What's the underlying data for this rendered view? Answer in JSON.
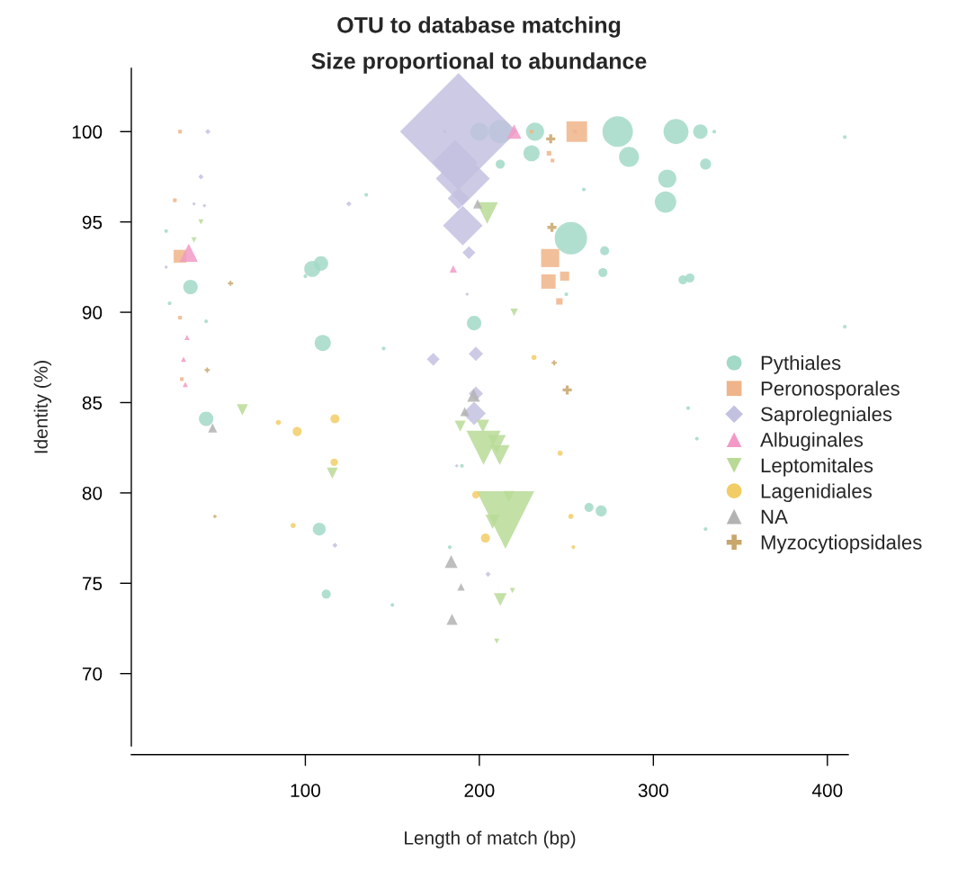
{
  "chart_data": {
    "type": "bubble",
    "title": "OTU to database matching",
    "subtitle": "Size proportional to abundance",
    "xlabel": "Length of match (bp)",
    "ylabel": "Identity (%)",
    "xlim": [
      0,
      412
    ],
    "ylim": [
      66,
      103.5
    ],
    "xticks": [
      100,
      200,
      300,
      400
    ],
    "yticks": [
      70,
      75,
      80,
      85,
      90,
      95,
      100
    ],
    "grid": false,
    "legend": "right",
    "series": [
      {
        "name": "Pythiales",
        "color": "#a3d9c7",
        "marker": "circle",
        "x": [
          252.6,
          279.5,
          313,
          327,
          286,
          308,
          307,
          232,
          212,
          200,
          230,
          104,
          109,
          110,
          34,
          43,
          108,
          112,
          197,
          212,
          270,
          263,
          272,
          271,
          317,
          321,
          330,
          410,
          410,
          320,
          325,
          335,
          135,
          100,
          20,
          22,
          43,
          145,
          183,
          150,
          250,
          260,
          330,
          190
        ],
        "values": [
          94.1,
          100,
          100,
          100,
          98.6,
          97.4,
          96.1,
          100,
          100,
          100,
          98.8,
          92.4,
          92.7,
          88.3,
          91.4,
          84.1,
          78.0,
          74.4,
          89.4,
          98.2,
          79.0,
          79.2,
          93.4,
          92.2,
          91.8,
          91.9,
          98.2,
          99.7,
          89.2,
          84.7,
          83.0,
          100,
          96.5,
          92.0,
          94.5,
          90.5,
          89.5,
          88.0,
          77.0,
          73.8,
          91.0,
          96.8,
          78.0,
          81.5
        ],
        "sizes": [
          0.121,
          0.107,
          0.072,
          0.024,
          0.046,
          0.038,
          0.053,
          0.038,
          0.063,
          0.038,
          0.03,
          0.03,
          0.024,
          0.03,
          0.024,
          0.024,
          0.019,
          0.0094,
          0.024,
          0.0094,
          0.014,
          0.0094,
          0.0094,
          0.0094,
          0.0094,
          0.0094,
          0.014,
          0.0016,
          0.0016,
          0.0016,
          0.0016,
          0.0016,
          0.0016,
          0.0016,
          0.0016,
          0.0016,
          0.0016,
          0.0016,
          0.0016,
          0.0016,
          0.0016,
          0.0016,
          0.0016,
          0.0016
        ]
      },
      {
        "name": "Peronosporales",
        "color": "#f0b48a",
        "marker": "square",
        "x": [
          256,
          240.7,
          239.7,
          249,
          246,
          240,
          242,
          28,
          28,
          25,
          28,
          29,
          230,
          255
        ],
        "values": [
          100,
          93.0,
          91.7,
          92.0,
          90.6,
          98.8,
          98.4,
          93.1,
          100,
          96.2,
          89.7,
          86.3,
          100,
          100
        ],
        "sizes": [
          0.062,
          0.048,
          0.03,
          0.012,
          0.006,
          0.003,
          0.002,
          0.024,
          0.002,
          0.002,
          0.002,
          0.002,
          0.002,
          0.002
        ]
      },
      {
        "name": "Saprolegniales",
        "color": "#c3c1e0",
        "marker": "diamond",
        "x": [
          188,
          186,
          190.5,
          190.5,
          188,
          194,
          198,
          173.5,
          198,
          197,
          44,
          40,
          36,
          125,
          117,
          42,
          20,
          205,
          180,
          193,
          187
        ],
        "values": [
          100,
          98.3,
          97.4,
          94.8,
          96.3,
          93.3,
          87.7,
          87.4,
          85.5,
          84.4,
          100,
          97.5,
          96,
          96,
          77.1,
          95.9,
          92.5,
          75.5,
          100,
          91,
          81.5
        ],
        "sizes": [
          1,
          0.148,
          0.213,
          0.115,
          0.034,
          0.012,
          0.015,
          0.012,
          0.015,
          0.04,
          0.002,
          0.002,
          0.001,
          0.002,
          0.002,
          0.001,
          0.001,
          0.002,
          0.001,
          0.001,
          0.001
        ]
      },
      {
        "name": "Albuginales",
        "color": "#f29ac5",
        "marker": "triangle",
        "x": [
          33,
          220,
          185,
          32,
          30,
          31
        ],
        "values": [
          93.3,
          100,
          92.4,
          88.6,
          87.4,
          86
        ],
        "sizes": [
          0.024,
          0.015,
          0.004,
          0.002,
          0.002,
          0.002
        ]
      },
      {
        "name": "Leptomitales",
        "color": "#b9da96",
        "marker": "triangle_down",
        "x": [
          215,
          202.4,
          211.7,
          210,
          207.6,
          204.5,
          202,
          189,
          212,
          217,
          63.8,
          115.5,
          220,
          210,
          219,
          36,
          40
        ],
        "values": [
          78.5,
          82.5,
          82.1,
          82.7,
          78.4,
          95.5,
          83.7,
          83.7,
          74.1,
          79.8,
          84.6,
          81.1,
          90,
          71.8,
          74.6,
          94,
          95
        ],
        "sizes": [
          0.242,
          0.085,
          0.029,
          0.024,
          0.015,
          0.034,
          0.012,
          0.009,
          0.012,
          0.009,
          0.009,
          0.009,
          0.004,
          0.002,
          0.002,
          0.002,
          0.002
        ]
      },
      {
        "name": "Lagenidiales",
        "color": "#f2cd66",
        "marker": "circle",
        "x": [
          95.3,
          117,
          116.6,
          93,
          203.5,
          198,
          252.6,
          246.4,
          231.4,
          84.5,
          254
        ],
        "values": [
          83.4,
          84.1,
          81.7,
          78.2,
          77.5,
          79.9,
          78.7,
          82.2,
          87.5,
          83.9,
          77
        ],
        "sizes": [
          0.0094,
          0.0094,
          0.0063,
          0.0031,
          0.0094,
          0.0063,
          0.0031,
          0.0031,
          0.0031,
          0.0031,
          0.0016
        ]
      },
      {
        "name": "NA",
        "color": "#b3b3b3",
        "marker": "triangle",
        "x": [
          183.8,
          189.5,
          184.3,
          196.7,
          191.6,
          46.7,
          199
        ],
        "values": [
          76.2,
          74.8,
          73.0,
          85.4,
          84.5,
          83.6,
          96.0
        ],
        "sizes": [
          0.012,
          0.004,
          0.009,
          0.012,
          0.006,
          0.006,
          0.006
        ]
      },
      {
        "name": "Myzocytiopsidales",
        "color": "#c9a66b",
        "marker": "cross",
        "x": [
          241.7,
          250.5,
          241,
          243,
          57,
          43.6,
          48
        ],
        "values": [
          94.7,
          85.7,
          99.6,
          87.2,
          91.6,
          86.8,
          78.7
        ],
        "sizes": [
          0.006,
          0.006,
          0.006,
          0.002,
          0.002,
          0.002,
          0.001
        ]
      }
    ]
  }
}
